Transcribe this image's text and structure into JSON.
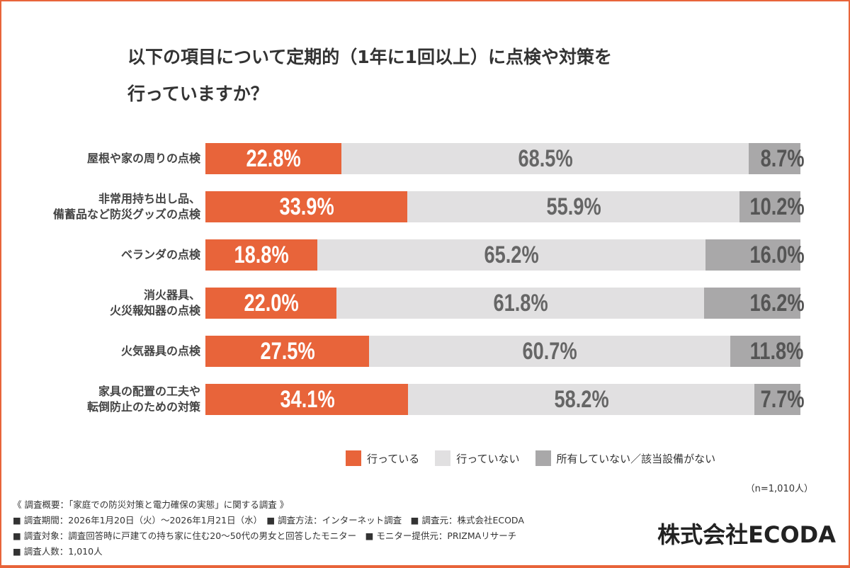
{
  "title_lines": [
    "以下の項目について定期的（1年に1回以上）に点検や対策を",
    "行っていますか？"
  ],
  "chart_data": {
    "type": "bar",
    "orientation": "horizontal",
    "stacked": "100%",
    "categories": [
      [
        "屋根や家の周りの点検"
      ],
      [
        "非常用持ち出し品、",
        "備蓄品など防災グッズの点検"
      ],
      [
        "ベランダの点検"
      ],
      [
        "消火器具、",
        "火災報知器の点検"
      ],
      [
        "火気器具の点検"
      ],
      [
        "家具の配置の工夫や",
        "転倒防止のための対策"
      ]
    ],
    "series": [
      {
        "name": "行っている",
        "color": "#e8643a",
        "values": [
          22.8,
          33.9,
          18.8,
          22.0,
          27.5,
          34.1
        ]
      },
      {
        "name": "行っていない",
        "color": "#e1e0e1",
        "values": [
          68.5,
          55.9,
          65.2,
          61.8,
          60.7,
          58.2
        ]
      },
      {
        "name": "所有していない／該当設備がない",
        "color": "#a9a8a9",
        "values": [
          8.7,
          10.2,
          16.0,
          16.2,
          11.8,
          7.7
        ]
      }
    ],
    "value_format": "{v}%",
    "legend_position": "bottom-right"
  },
  "sample_note": "（n=1,010人）",
  "notes": [
    "《 調査概要：「家庭での防災対策と電力確保の実態」に関する調査 》",
    "■ 調査期間：2026年1月20日（火）〜2026年1月21日（水）　■ 調査方法：インターネット調査　■ 調査元：株式会社ECODA",
    "■ 調査対象：調査回答時に戸建ての持ち家に住む20〜50代の男女と回答したモニター　■ モニター提供元：PRIZMAリサーチ",
    "■ 調査人数：1,010人"
  ],
  "logo": "株式会社ECODA"
}
